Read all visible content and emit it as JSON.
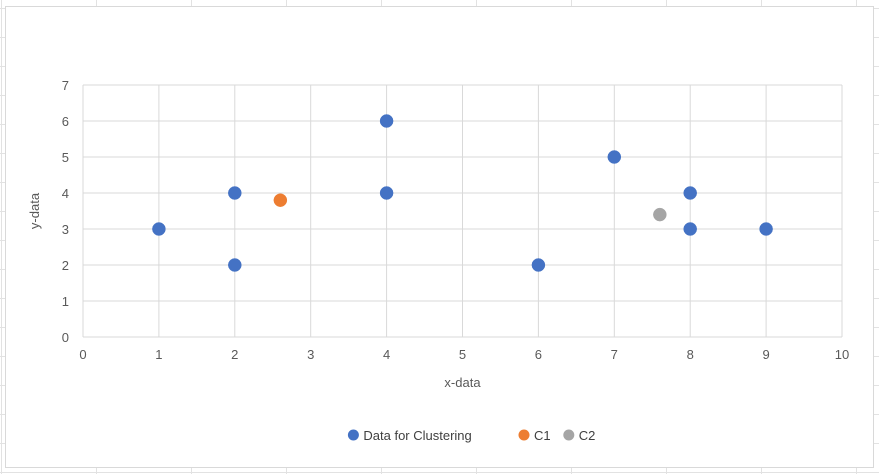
{
  "chart_data": {
    "type": "scatter",
    "xlabel": "x-data",
    "ylabel": "y-data",
    "xlim": [
      0,
      10
    ],
    "ylim": [
      0,
      7
    ],
    "xticks": [
      0,
      1,
      2,
      3,
      4,
      5,
      6,
      7,
      8,
      9,
      10
    ],
    "yticks": [
      0,
      1,
      2,
      3,
      4,
      5,
      6,
      7
    ],
    "grid": true,
    "legend_position": "bottom",
    "series": [
      {
        "name": "Data for Clustering",
        "color": "#4472c4",
        "points": [
          [
            1,
            3
          ],
          [
            2,
            4
          ],
          [
            2,
            2
          ],
          [
            4,
            6
          ],
          [
            4,
            4
          ],
          [
            6,
            2
          ],
          [
            7,
            5
          ],
          [
            8,
            4
          ],
          [
            8,
            3
          ],
          [
            9,
            3
          ]
        ]
      },
      {
        "name": "C1",
        "color": "#ed7d31",
        "points": [
          [
            2.6,
            3.8
          ]
        ]
      },
      {
        "name": "C2",
        "color": "#a5a5a5",
        "points": [
          [
            7.6,
            3.4
          ]
        ]
      }
    ]
  }
}
